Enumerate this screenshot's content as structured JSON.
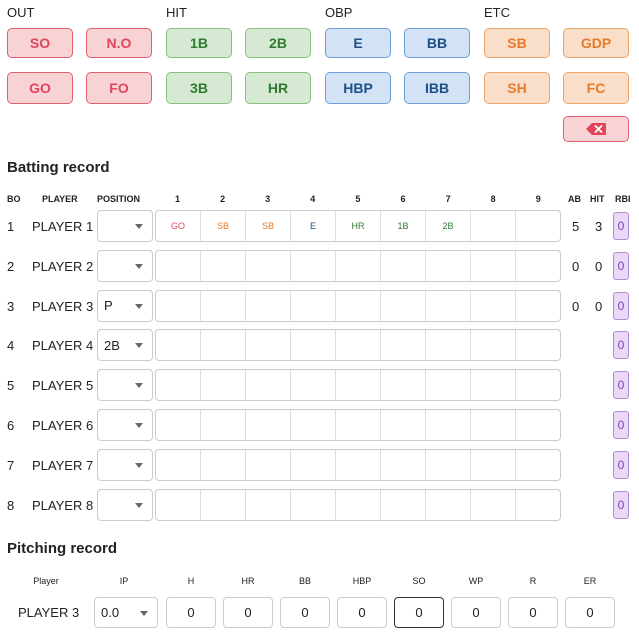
{
  "groups": {
    "out": {
      "label": "OUT",
      "buttons": [
        "SO",
        "N.O",
        "GO",
        "FO"
      ]
    },
    "hit": {
      "label": "HIT",
      "buttons": [
        "1B",
        "2B",
        "3B",
        "HR"
      ]
    },
    "obp": {
      "label": "OBP",
      "buttons": [
        "E",
        "BB",
        "HBP",
        "IBB"
      ]
    },
    "etc": {
      "label": "ETC",
      "buttons": [
        "SB",
        "GDP",
        "SH",
        "FC"
      ]
    }
  },
  "delete_icon": "backspace-icon",
  "colors": {
    "out": "#e0455a",
    "hit": "#2e7a2e",
    "obp": "#1e4f86",
    "etc": "#e8792a",
    "rbi": "#7a3fb0"
  },
  "batting": {
    "title": "Batting record",
    "headers": {
      "bo": "BO",
      "player": "PLAYER",
      "position": "POSITION",
      "innings": [
        "1",
        "2",
        "3",
        "4",
        "5",
        "6",
        "7",
        "8",
        "9"
      ],
      "ab": "AB",
      "hit": "HIT",
      "rbi": "RBI"
    },
    "rows": [
      {
        "bo": "1",
        "player": "PLAYER 1",
        "position": "",
        "innings": [
          "GO",
          "SB",
          "SB",
          "E",
          "HR",
          "1B",
          "2B",
          "",
          ""
        ],
        "ab": "5",
        "hit": "3",
        "rbi": "0"
      },
      {
        "bo": "2",
        "player": "PLAYER 2",
        "position": "",
        "innings": [
          "",
          "",
          "",
          "",
          "",
          "",
          "",
          "",
          ""
        ],
        "ab": "0",
        "hit": "0",
        "rbi": "0"
      },
      {
        "bo": "3",
        "player": "PLAYER 3",
        "position": "P",
        "innings": [
          "",
          "",
          "",
          "",
          "",
          "",
          "",
          "",
          ""
        ],
        "ab": "0",
        "hit": "0",
        "rbi": "0"
      },
      {
        "bo": "4",
        "player": "PLAYER 4",
        "position": "2B",
        "innings": [
          "",
          "",
          "",
          "",
          "",
          "",
          "",
          "",
          ""
        ],
        "ab": "",
        "hit": "",
        "rbi": "0"
      },
      {
        "bo": "5",
        "player": "PLAYER 5",
        "position": "",
        "innings": [
          "",
          "",
          "",
          "",
          "",
          "",
          "",
          "",
          ""
        ],
        "ab": "",
        "hit": "",
        "rbi": "0"
      },
      {
        "bo": "6",
        "player": "PLAYER 6",
        "position": "",
        "innings": [
          "",
          "",
          "",
          "",
          "",
          "",
          "",
          "",
          ""
        ],
        "ab": "",
        "hit": "",
        "rbi": "0"
      },
      {
        "bo": "7",
        "player": "PLAYER 7",
        "position": "",
        "innings": [
          "",
          "",
          "",
          "",
          "",
          "",
          "",
          "",
          ""
        ],
        "ab": "",
        "hit": "",
        "rbi": "0"
      },
      {
        "bo": "8",
        "player": "PLAYER 8",
        "position": "",
        "innings": [
          "",
          "",
          "",
          "",
          "",
          "",
          "",
          "",
          ""
        ],
        "ab": "",
        "hit": "",
        "rbi": "0"
      }
    ]
  },
  "pitching": {
    "title": "Pitching record",
    "headers": {
      "player": "Player",
      "ip": "IP",
      "h": "H",
      "hr": "HR",
      "bb": "BB",
      "hbp": "HBP",
      "so": "SO",
      "wp": "WP",
      "r": "R",
      "er": "ER"
    },
    "row": {
      "player": "PLAYER 3",
      "ip": "0.0",
      "h": "0",
      "hr": "0",
      "bb": "0",
      "hbp": "0",
      "so": "0",
      "wp": "0",
      "r": "0",
      "er": "0"
    }
  }
}
